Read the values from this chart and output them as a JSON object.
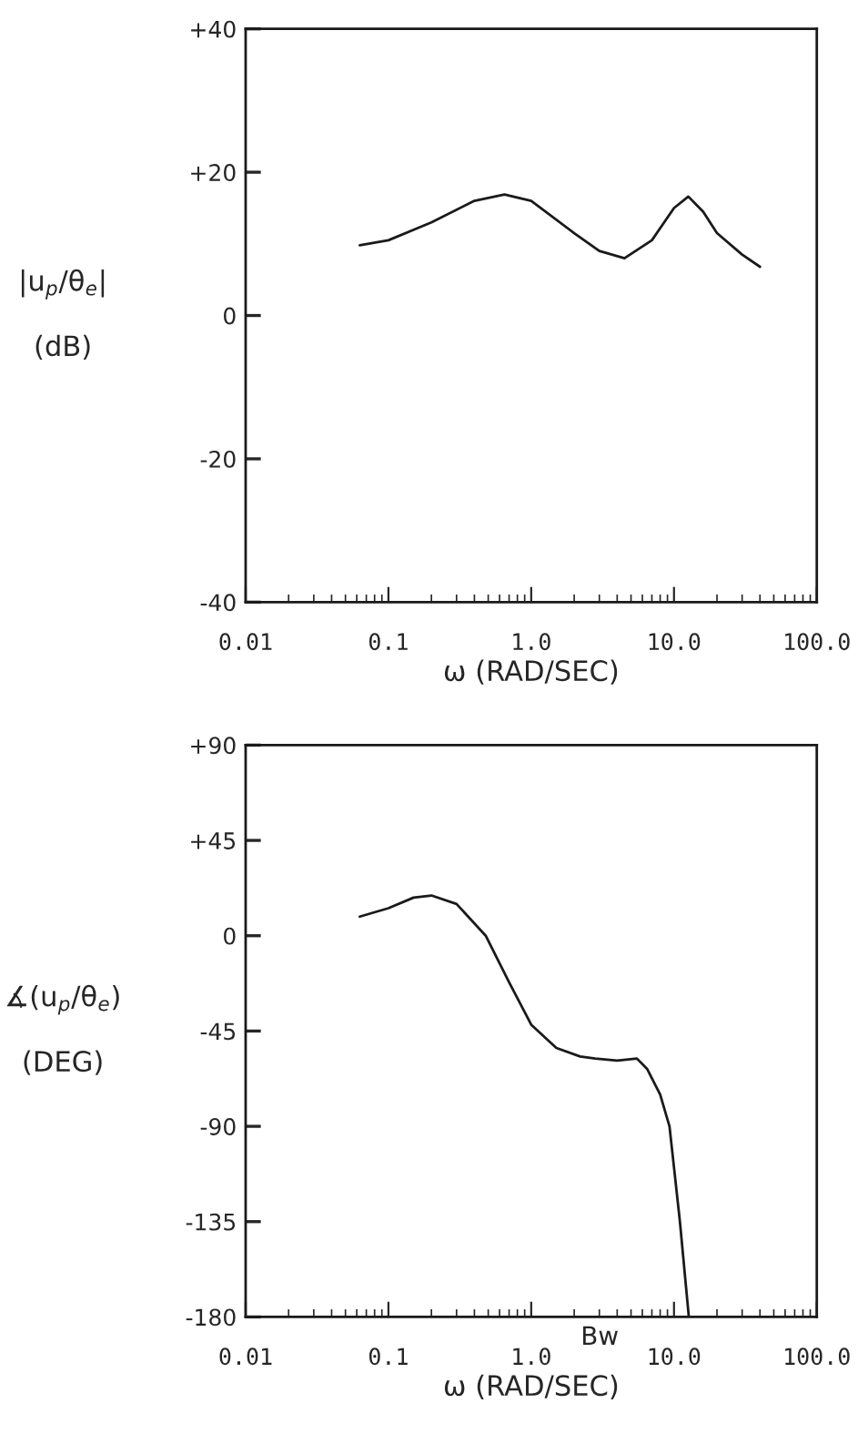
{
  "chart_data": [
    {
      "type": "line",
      "xlabel": "ω (RAD/SEC)",
      "ylabel": "|u$_{p}$/θ$_{e}$|\n\n(dB)",
      "log": "x",
      "grid": false,
      "marker": "none",
      "line_style": "solid",
      "xlim": [
        0.01,
        100
      ],
      "xticks": [
        {
          "value": 0.01,
          "label": "0.01"
        },
        {
          "value": 0.1,
          "label": "0.1"
        },
        {
          "value": 1,
          "label": "1.0"
        },
        {
          "value": 10,
          "label": "10.0"
        },
        {
          "value": 100,
          "label": "100.0"
        }
      ],
      "ylim": [
        -40,
        40
      ],
      "yticks": [
        {
          "value": -40,
          "label": "-40"
        },
        {
          "value": -20,
          "label": "-20"
        },
        0,
        {
          "value": 20,
          "label": "+20"
        },
        {
          "value": 40,
          "label": "+40"
        }
      ],
      "series": [
        {
          "color": "#1a1a1a",
          "x": [
            0.063,
            0.1,
            0.2,
            0.4,
            0.65,
            1.0,
            2.0,
            3.0,
            4.5,
            7,
            10,
            12.6,
            16,
            20,
            30,
            40
          ],
          "values": [
            9.8,
            10.5,
            13,
            16,
            16.9,
            16,
            11.5,
            9,
            8,
            10.5,
            15,
            16.6,
            14.5,
            11.5,
            8.5,
            6.8
          ]
        }
      ]
    },
    {
      "type": "line",
      "xlabel": "ω (RAD/SEC)",
      "ylabel": "∡(u$_{p}$/θ$_{e}$)\n\n(DEG)",
      "log": "x",
      "grid": false,
      "marker": "none",
      "line_style": "solid",
      "xlim": [
        0.01,
        100
      ],
      "xticks": [
        {
          "value": 0.01,
          "label": "0.01"
        },
        {
          "value": 0.1,
          "label": "0.1"
        },
        {
          "value": 1,
          "label": "1.0"
        },
        {
          "value": 10,
          "label": "10.0"
        },
        {
          "value": 100,
          "label": "100.0"
        }
      ],
      "ylim": [
        -180,
        90
      ],
      "yticks": [
        {
          "value": -180,
          "label": "-180"
        },
        {
          "value": -135,
          "label": "-135"
        },
        {
          "value": -90,
          "label": "-90"
        },
        {
          "value": -45,
          "label": "-45"
        },
        0,
        {
          "value": 45,
          "label": "+45"
        },
        {
          "value": 90,
          "label": "+90"
        }
      ],
      "annotations": [
        "Bw"
      ],
      "series": [
        {
          "color": "#1a1a1a",
          "x": [
            0.063,
            0.1,
            0.15,
            0.2,
            0.3,
            0.48,
            0.7,
            1.0,
            1.5,
            2.2,
            2.8,
            4.0,
            5.5,
            6.5,
            8,
            9.3,
            11,
            12.7
          ],
          "values": [
            9,
            13,
            18,
            19,
            15,
            0,
            -22,
            -42,
            -53,
            -57,
            -58,
            -59,
            -58,
            -63,
            -75,
            -90,
            -135,
            -180
          ]
        }
      ]
    }
  ]
}
